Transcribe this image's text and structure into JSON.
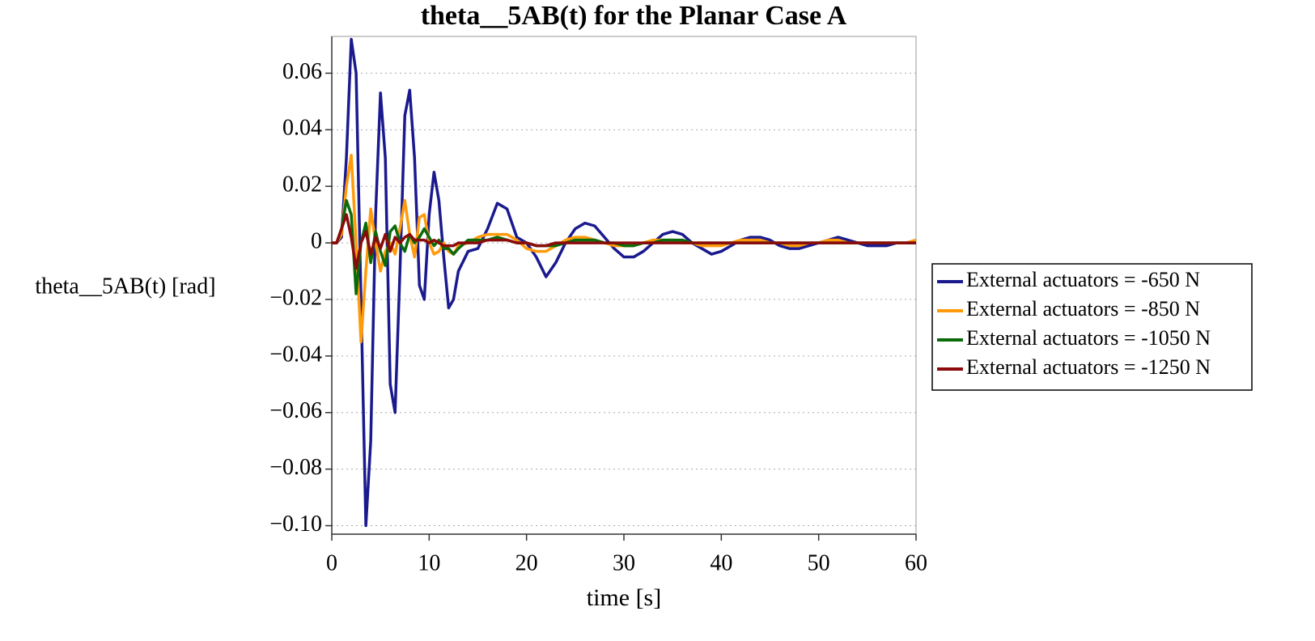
{
  "chart_data": {
    "type": "line",
    "title": "theta__5AB(t) for the Planar Case A",
    "xlabel": "time [s]",
    "ylabel": "theta__5AB(t) [rad]",
    "xlim": [
      0,
      60
    ],
    "ylim": [
      -0.103,
      0.073
    ],
    "xticks": [
      0,
      10,
      20,
      30,
      40,
      50,
      60
    ],
    "yticks": [
      0.06,
      0.04,
      0.02,
      0,
      {
        "value": -0.02,
        "label": "−0.02"
      },
      {
        "value": -0.04,
        "label": "−0.04"
      },
      {
        "value": -0.06,
        "label": "−0.06"
      },
      {
        "value": -0.08,
        "label": "−0.08"
      },
      {
        "value": -0.1,
        "label": "−0.10"
      }
    ],
    "grid": true,
    "legend": "right",
    "x": [
      0,
      0.5,
      1,
      1.5,
      2,
      2.5,
      3,
      3.5,
      4,
      4.5,
      5,
      5.5,
      6,
      6.5,
      7,
      7.5,
      8,
      8.5,
      9,
      9.5,
      10,
      10.5,
      11,
      11.5,
      12,
      12.5,
      13,
      14,
      15,
      16,
      17,
      18,
      19,
      20,
      21,
      22,
      23,
      24,
      25,
      26,
      27,
      28,
      29,
      30,
      31,
      32,
      33,
      34,
      35,
      36,
      37,
      38,
      39,
      40,
      41,
      42,
      43,
      44,
      45,
      46,
      47,
      48,
      49,
      50,
      51,
      52,
      53,
      54,
      55,
      56,
      57,
      58,
      59,
      60
    ],
    "series": [
      {
        "name": "External actuators = -650 N",
        "color": "#1a1a8e",
        "values": [
          0,
          0,
          0.002,
          0.03,
          0.072,
          0.06,
          -0.02,
          -0.1,
          -0.07,
          0.01,
          0.053,
          0.03,
          -0.05,
          -0.06,
          -0.01,
          0.045,
          0.054,
          0.03,
          -0.015,
          -0.02,
          0.01,
          0.025,
          0.015,
          -0.005,
          -0.023,
          -0.02,
          -0.01,
          -0.003,
          -0.002,
          0.005,
          0.014,
          0.012,
          0.002,
          0,
          -0.005,
          -0.012,
          -0.007,
          0,
          0.005,
          0.007,
          0.006,
          0.002,
          -0.002,
          -0.005,
          -0.005,
          -0.003,
          0,
          0.003,
          0.004,
          0.003,
          0,
          -0.002,
          -0.004,
          -0.003,
          -0.001,
          0.001,
          0.002,
          0.002,
          0.001,
          -0.001,
          -0.002,
          -0.002,
          -0.001,
          0,
          0.001,
          0.002,
          0.001,
          0,
          -0.001,
          -0.001,
          -0.001,
          0,
          0,
          0
        ]
      },
      {
        "name": "External actuators = -850 N",
        "color": "#ff9a0a",
        "values": [
          0,
          0,
          0.003,
          0.02,
          0.031,
          0,
          -0.035,
          -0.01,
          0.012,
          0,
          -0.01,
          -0.003,
          0,
          -0.004,
          0.005,
          0.015,
          0.003,
          -0.005,
          0.009,
          0.01,
          0,
          -0.004,
          -0.003,
          0,
          -0.003,
          -0.004,
          -0.001,
          0,
          0.002,
          0.003,
          0.003,
          0.003,
          0.001,
          -0.002,
          -0.003,
          -0.003,
          -0.001,
          0.001,
          0.002,
          0.002,
          0.001,
          0,
          -0.001,
          -0.001,
          -0.001,
          0,
          0.001,
          0.001,
          0.001,
          0,
          0,
          -0.001,
          -0.001,
          -0.001,
          0,
          0.001,
          0.001,
          0.001,
          0,
          0,
          -0.001,
          -0.001,
          0,
          0,
          0.001,
          0.001,
          0,
          0,
          0,
          0,
          0,
          0,
          0,
          0.001
        ]
      },
      {
        "name": "External actuators = -1050 N",
        "color": "#0b6b0b",
        "values": [
          0,
          0,
          0.005,
          0.015,
          0.01,
          -0.018,
          0,
          0.007,
          -0.007,
          0.004,
          -0.003,
          -0.008,
          0.004,
          0.006,
          0,
          -0.003,
          0.003,
          0,
          0.002,
          0.005,
          0.002,
          -0.001,
          0.001,
          -0.002,
          -0.002,
          -0.004,
          -0.002,
          0.001,
          0.001,
          0.001,
          0.002,
          0.001,
          0,
          0,
          -0.001,
          -0.001,
          -0.001,
          0,
          0.001,
          0.001,
          0.001,
          0,
          0,
          -0.001,
          -0.001,
          0,
          0,
          0.001,
          0.001,
          0.001,
          0,
          0,
          0,
          0,
          0,
          0,
          0,
          0,
          0,
          0,
          0,
          0,
          0,
          0,
          0,
          0,
          0,
          0,
          0,
          0,
          0,
          0,
          0,
          0
        ]
      },
      {
        "name": "External actuators = -1250 N",
        "color": "#8b0a0a",
        "values": [
          0,
          0,
          0.005,
          0.01,
          0.002,
          -0.009,
          0,
          0.004,
          -0.004,
          0.002,
          -0.002,
          0.003,
          -0.003,
          0.002,
          0,
          0.002,
          0.003,
          0.001,
          0.001,
          0.001,
          0,
          0.001,
          0,
          -0.001,
          -0.001,
          -0.001,
          0,
          0,
          0,
          0.001,
          0.001,
          0.001,
          0,
          0,
          -0.001,
          -0.001,
          0,
          0,
          0,
          0,
          0,
          0,
          0,
          0,
          0,
          0,
          0,
          0,
          0,
          0,
          0,
          0,
          0,
          0,
          0,
          0,
          0,
          0,
          0,
          0,
          0,
          0,
          0,
          0,
          0,
          0,
          0,
          0,
          0,
          0,
          0,
          0,
          0,
          0
        ]
      }
    ]
  }
}
